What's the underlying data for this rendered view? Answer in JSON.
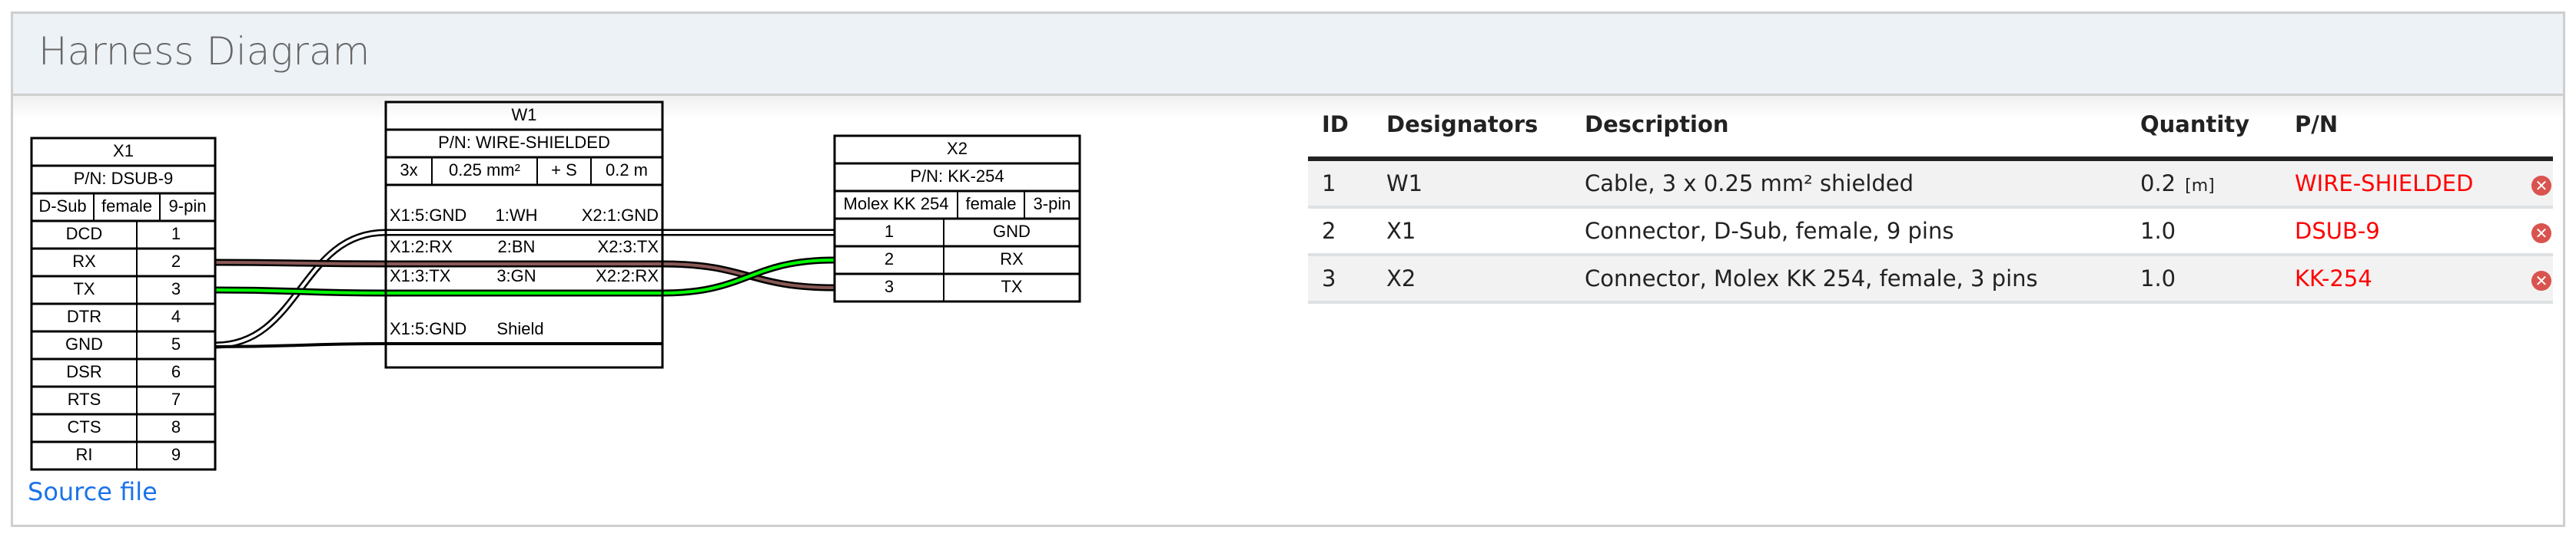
{
  "header": {
    "title": "Harness Diagram"
  },
  "source_link": "Source file",
  "wire_colors": {
    "WH": "#ffffff",
    "BN": "#895956",
    "GN": "#00ff00"
  },
  "diagram": {
    "x1": {
      "title": "X1",
      "pn": "P/N: DSUB-9",
      "attrs": [
        "D-Sub",
        "female",
        "9-pin"
      ],
      "pins": [
        [
          "DCD",
          "1"
        ],
        [
          "RX",
          "2"
        ],
        [
          "TX",
          "3"
        ],
        [
          "DTR",
          "4"
        ],
        [
          "GND",
          "5"
        ],
        [
          "DSR",
          "6"
        ],
        [
          "RTS",
          "7"
        ],
        [
          "CTS",
          "8"
        ],
        [
          "RI",
          "9"
        ]
      ]
    },
    "w1": {
      "title": "W1",
      "pn": "P/N: WIRE-SHIELDED",
      "attrs": [
        "3x",
        "0.25 mm²",
        "+ S",
        "0.2 m"
      ],
      "wires": [
        {
          "from": "X1:5:GND",
          "label": "1:WH",
          "to": "X2:1:GND",
          "color": "WH"
        },
        {
          "from": "X1:2:RX",
          "label": "2:BN",
          "to": "X2:3:TX",
          "color": "BN"
        },
        {
          "from": "X1:3:TX",
          "label": "3:GN",
          "to": "X2:2:RX",
          "color": "GN"
        }
      ],
      "shield": {
        "from": "X1:5:GND",
        "label": "Shield"
      }
    },
    "x2": {
      "title": "X2",
      "pn": "P/N: KK-254",
      "attrs": [
        "Molex KK 254",
        "female",
        "3-pin"
      ],
      "pins": [
        [
          "1",
          "GND"
        ],
        [
          "2",
          "RX"
        ],
        [
          "3",
          "TX"
        ]
      ]
    }
  },
  "bom": {
    "headers": [
      "ID",
      "Designators",
      "Description",
      "Quantity",
      "P/N"
    ],
    "rows": [
      {
        "id": "1",
        "designators": "W1",
        "description": "Cable, 3 x 0.25 mm² shielded",
        "quantity": "0.2",
        "unit": "[m]",
        "pn": "WIRE-SHIELDED"
      },
      {
        "id": "2",
        "designators": "X1",
        "description": "Connector, D-Sub, female, 9 pins",
        "quantity": "1.0",
        "unit": "",
        "pn": "DSUB-9"
      },
      {
        "id": "3",
        "designators": "X2",
        "description": "Connector, Molex KK 254, female, 3 pins",
        "quantity": "1.0",
        "unit": "",
        "pn": "KK-254"
      }
    ],
    "delete_icon": "delete-circle-x-icon"
  }
}
